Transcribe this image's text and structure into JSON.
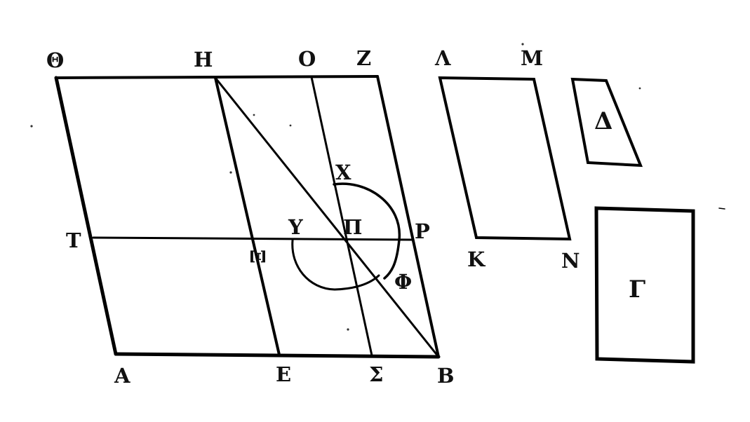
{
  "figure": {
    "labels": {
      "theta": "Θ",
      "eta": "H",
      "omicron": "O",
      "zeta": "Z",
      "lambda": "Λ",
      "mu": "M",
      "tau": "T",
      "xi": "Ξ",
      "upsilon": "Υ",
      "pi": "Π",
      "rho": "P",
      "chi": "X",
      "phi": "Φ",
      "alpha": "A",
      "epsilon": "E",
      "sigma": "Σ",
      "beta": "B",
      "kappa": "K",
      "nu": "N",
      "delta": "Δ",
      "gamma": "Γ"
    },
    "colors": {
      "ink": "#000000",
      "paper": "#ffffff"
    }
  }
}
